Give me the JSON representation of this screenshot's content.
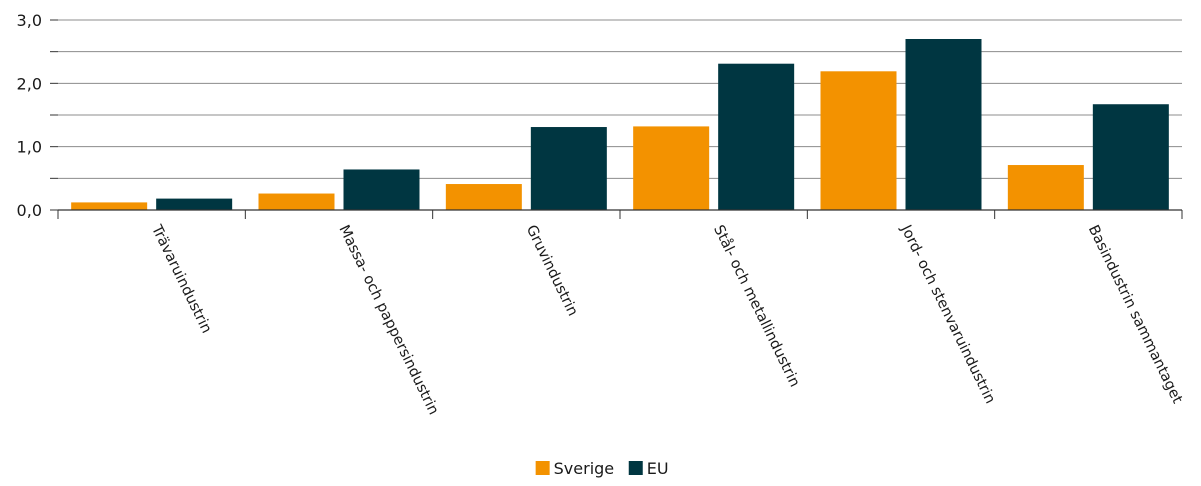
{
  "chart_data": {
    "type": "bar",
    "categories": [
      "Trävaruindustrin",
      "Massa- och pappersindustrin",
      "Gruvindustrin",
      "Stål- och metallindustrin",
      "Jord- och stenvaruindustrin",
      "Basindustrin sammantaget"
    ],
    "series": [
      {
        "name": "Sverige",
        "color": "#F39200",
        "values": [
          0.12,
          0.26,
          0.41,
          1.32,
          2.19,
          0.71
        ]
      },
      {
        "name": "EU",
        "color": "#003641",
        "values": [
          0.18,
          0.64,
          1.31,
          2.31,
          2.7,
          1.67
        ]
      }
    ],
    "ylim": [
      0,
      3
    ],
    "yticks": [
      "0,0",
      "1,0",
      "2,0",
      "3,0"
    ],
    "ytick_values": [
      0,
      1,
      2,
      3
    ],
    "minor_ytick_values": [
      0.5,
      1.5,
      2.5
    ],
    "grid": true,
    "legend_position": "bottom-center",
    "title": "",
    "xlabel": "",
    "ylabel": ""
  }
}
